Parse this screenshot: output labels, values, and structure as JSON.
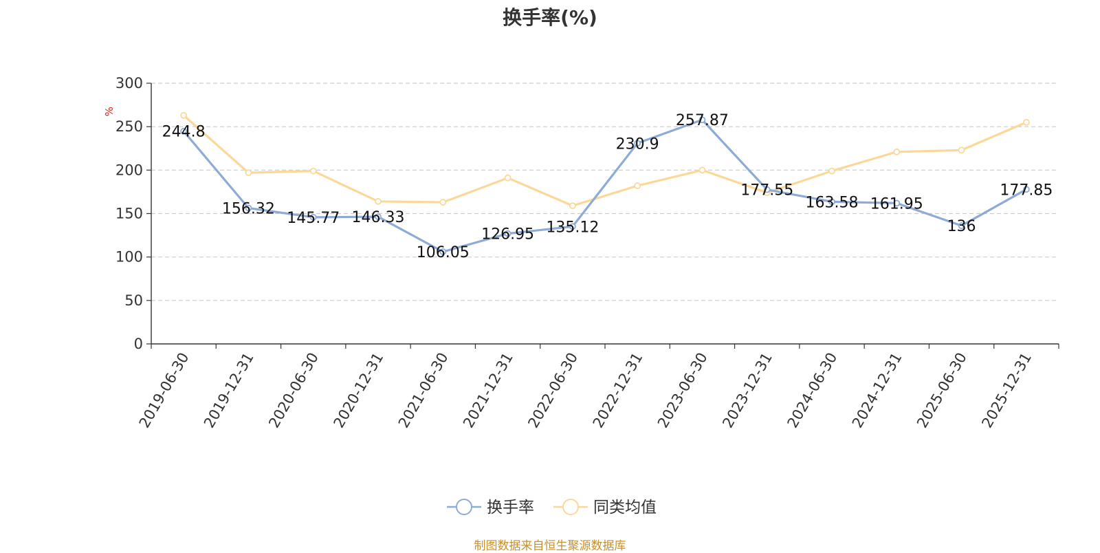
{
  "chart_data": {
    "type": "line",
    "title": "换手率(%)",
    "ylabel": "%",
    "ylim": [
      0,
      300
    ],
    "yticks": [
      0,
      50,
      100,
      150,
      200,
      250,
      300
    ],
    "grid": true,
    "legend_position": "bottom-center",
    "categories": [
      "2019-06-30",
      "2019-12-31",
      "2020-06-30",
      "2020-12-31",
      "2021-06-30",
      "2021-12-31",
      "2022-06-30",
      "2022-12-31",
      "2023-06-30",
      "2023-12-31",
      "2024-06-30",
      "2024-12-31",
      "2025-06-30",
      "2025-12-31"
    ],
    "series": [
      {
        "name": "换手率",
        "color": "#8eaad6",
        "show_labels": true,
        "values": [
          244.8,
          156.32,
          145.77,
          146.33,
          106.05,
          126.95,
          135.12,
          230.9,
          257.87,
          177.55,
          163.58,
          161.95,
          136,
          177.85
        ]
      },
      {
        "name": "同类均值",
        "color": "#fbd899",
        "show_labels": false,
        "values": [
          263,
          197,
          199,
          164,
          163,
          191,
          159,
          182,
          200,
          174,
          199,
          221,
          223,
          255
        ]
      }
    ]
  },
  "source_note": "制图数据来自恒生聚源数据库"
}
